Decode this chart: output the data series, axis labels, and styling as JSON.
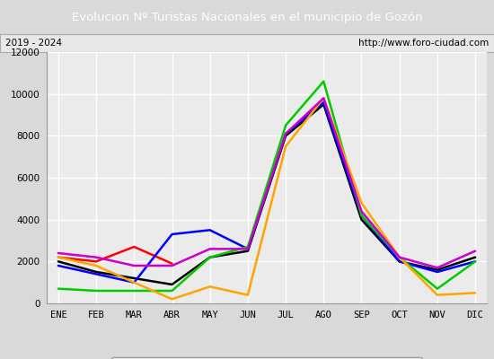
{
  "title": "Evolucion Nº Turistas Nacionales en el municipio de Gozón",
  "subtitle_left": "2019 - 2024",
  "subtitle_right": "http://www.foro-ciudad.com",
  "months": [
    "ENE",
    "FEB",
    "MAR",
    "ABR",
    "MAY",
    "JUN",
    "JUL",
    "AGO",
    "SEP",
    "OCT",
    "NOV",
    "DIC"
  ],
  "series": {
    "2024": [
      2200,
      2000,
      2700,
      1900,
      null,
      null,
      null,
      null,
      null,
      null,
      null,
      null
    ],
    "2023": [
      2000,
      1500,
      1200,
      900,
      2200,
      2500,
      8000,
      9500,
      4000,
      2000,
      1600,
      2200
    ],
    "2022": [
      1800,
      1400,
      1000,
      3300,
      3500,
      2600,
      8100,
      9600,
      4200,
      2000,
      1500,
      2000
    ],
    "2021": [
      700,
      600,
      600,
      600,
      2200,
      2700,
      8500,
      10600,
      4200,
      2200,
      700,
      2000
    ],
    "2020": [
      2200,
      1800,
      1000,
      200,
      800,
      400,
      7500,
      9800,
      4800,
      2200,
      400,
      500
    ],
    "2019": [
      2400,
      2200,
      1800,
      1800,
      2600,
      2600,
      8100,
      9800,
      4400,
      2200,
      1700,
      2500
    ]
  },
  "colors": {
    "2024": "#ff0000",
    "2023": "#000000",
    "2022": "#0000ff",
    "2021": "#00cc00",
    "2020": "#ffa500",
    "2019": "#cc00cc"
  },
  "ylim": [
    0,
    12000
  ],
  "yticks": [
    0,
    2000,
    4000,
    6000,
    8000,
    10000,
    12000
  ],
  "title_bg_color": "#4472c4",
  "title_text_color": "#ffffff",
  "plot_bg_color": "#ebebeb",
  "grid_color": "#ffffff",
  "outer_bg_color": "#d9d9d9",
  "subtitle_bg_color": "#e8e8e8",
  "title_fontsize": 9.5,
  "tick_fontsize": 7.5,
  "legend_fontsize": 7.5
}
